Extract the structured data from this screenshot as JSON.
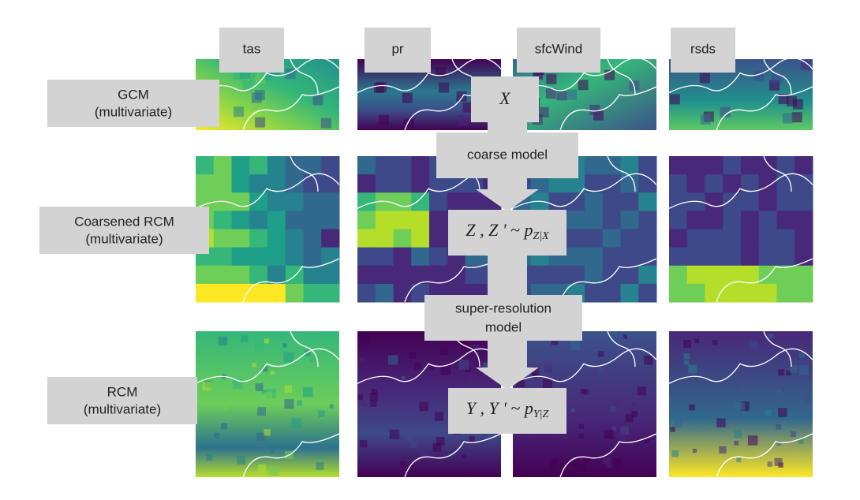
{
  "columns": [
    "tas",
    "pr",
    "sfcWind",
    "rsds"
  ],
  "rows": [
    {
      "title": "GCM",
      "subtitle": "(multivariate)"
    },
    {
      "title": "Coarsened RCM",
      "subtitle": "(multivariate)"
    },
    {
      "title": "RCM",
      "subtitle": "(multivariate)"
    }
  ],
  "flow": {
    "x_var": "X",
    "coarse_model": "coarse model",
    "z_formula": {
      "main": "Z , Z ' ~ p",
      "sub": "Z|X"
    },
    "sr_model": [
      "super-resolution",
      "model"
    ],
    "y_formula": {
      "main": "Y , Y ' ~ p",
      "sub": "Y|Z"
    }
  }
}
